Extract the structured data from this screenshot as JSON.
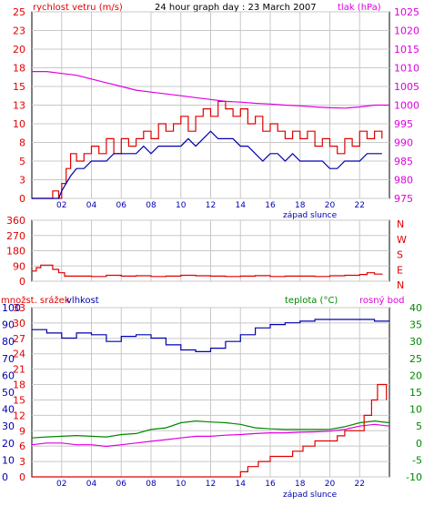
{
  "colors": {
    "red": "#e00000",
    "blue": "#0000b0",
    "magenta": "#e000e0",
    "green": "#008800",
    "grid": "#c8c8c8",
    "frame": "#000000"
  },
  "header": {
    "wind_label": "rychlost vetru (m/s)",
    "title": "24 hour graph day : 23 March 2007",
    "pressure_label": "tlak (hPa)"
  },
  "footer": {
    "sunset_top": "západ slunce",
    "sunset_bottom": "západ slunce"
  },
  "panel3_labels": {
    "precip": "množst. srážek",
    "humidity": "vlhkost",
    "temperature": "teplota (°C)",
    "dewpoint": "rosný bod"
  },
  "chart_data": [
    {
      "type": "line",
      "name": "wind-pressure",
      "x_ticks": [
        "02",
        "04",
        "06",
        "08",
        "10",
        "12",
        "14",
        "16",
        "18",
        "20",
        "22"
      ],
      "y_left_ticks": [
        "0",
        "3",
        "5",
        "8",
        "10",
        "13",
        "15",
        "18",
        "20",
        "23",
        "25"
      ],
      "y_left_range": [
        0,
        25
      ],
      "y_right_ticks": [
        "975",
        "980",
        "985",
        "990",
        "995",
        "1000",
        "1005",
        "1010",
        "1015",
        "1020",
        "1025"
      ],
      "y_right_range": [
        975,
        1025
      ],
      "x_range": [
        0,
        24
      ],
      "series": [
        {
          "name": "rychlost vetru (m/s)",
          "color_key": "red",
          "axis": "left",
          "x": [
            0,
            1.2,
            1.4,
            1.8,
            2.0,
            2.3,
            2.6,
            3.0,
            3.5,
            4.0,
            4.5,
            5.0,
            5.5,
            6.0,
            6.5,
            7.0,
            7.5,
            8.0,
            8.5,
            9.0,
            9.5,
            10.0,
            10.5,
            11.0,
            11.5,
            12.0,
            12.5,
            13.0,
            13.5,
            14.0,
            14.5,
            15.0,
            15.5,
            16.0,
            16.5,
            17.0,
            17.5,
            18.0,
            18.5,
            19.0,
            19.5,
            20.0,
            20.5,
            21.0,
            21.5,
            22.0,
            22.5,
            23.0,
            23.5
          ],
          "y": [
            0,
            0,
            1,
            0,
            2,
            4,
            6,
            5,
            6,
            7,
            6,
            8,
            6,
            8,
            7,
            8,
            9,
            8,
            10,
            9,
            10,
            11,
            9,
            11,
            12,
            11,
            13,
            12,
            11,
            12,
            10,
            11,
            9,
            10,
            9,
            8,
            9,
            8,
            9,
            7,
            8,
            7,
            6,
            8,
            7,
            9,
            8,
            9,
            8
          ]
        },
        {
          "name": "gust-blue",
          "color_key": "blue",
          "axis": "left",
          "x": [
            0,
            1.8,
            2.0,
            2.3,
            2.6,
            3.0,
            3.5,
            4.0,
            4.5,
            5.0,
            5.5,
            6.0,
            6.5,
            7.0,
            7.5,
            8.0,
            8.5,
            9.0,
            9.5,
            10.0,
            10.5,
            11.0,
            11.5,
            12.0,
            12.5,
            13.0,
            13.5,
            14.0,
            14.5,
            15.0,
            15.5,
            16.0,
            16.5,
            17.0,
            17.5,
            18.0,
            18.5,
            19.0,
            19.5,
            20.0,
            20.5,
            21.0,
            21.5,
            22.0,
            22.5,
            23.0,
            23.5
          ],
          "y": [
            0,
            0,
            1,
            2,
            3,
            4,
            4,
            5,
            5,
            5,
            6,
            6,
            6,
            6,
            7,
            6,
            7,
            7,
            7,
            7,
            8,
            7,
            8,
            9,
            8,
            8,
            8,
            7,
            7,
            6,
            5,
            6,
            6,
            5,
            6,
            5,
            5,
            5,
            5,
            4,
            4,
            5,
            5,
            5,
            6,
            6,
            6
          ]
        },
        {
          "name": "tlak (hPa)",
          "color_key": "magenta",
          "axis": "right",
          "x": [
            0,
            1,
            2,
            3,
            4,
            5,
            6,
            7,
            8,
            9,
            10,
            11,
            12,
            13,
            14,
            15,
            16,
            17,
            18,
            19,
            20,
            21,
            22,
            23,
            24
          ],
          "y": [
            1009,
            1009,
            1008.5,
            1008,
            1007,
            1006,
            1005,
            1004,
            1003.5,
            1003,
            1002.5,
            1002,
            1001.5,
            1001,
            1000.8,
            1000.5,
            1000.3,
            1000,
            999.8,
            999.5,
            999.3,
            999.2,
            999.5,
            1000,
            1000
          ]
        }
      ]
    },
    {
      "type": "line",
      "name": "wind-direction",
      "y_left_ticks": [
        "0",
        "90",
        "180",
        "270",
        "360"
      ],
      "y_left_range": [
        0,
        360
      ],
      "y_right_labels": [
        "N",
        "W",
        "S",
        "E",
        "N"
      ],
      "series": [
        {
          "name": "wind direction",
          "color_key": "red",
          "x": [
            0,
            0.3,
            0.6,
            1.2,
            1.4,
            1.8,
            2.2,
            3,
            4,
            5,
            6,
            7,
            8,
            9,
            10,
            11,
            12,
            13,
            14,
            15,
            16,
            17,
            18,
            19,
            20,
            21,
            22,
            22.5,
            23,
            23.5
          ],
          "y": [
            60,
            80,
            95,
            95,
            70,
            50,
            30,
            30,
            28,
            35,
            30,
            32,
            28,
            30,
            35,
            32,
            30,
            28,
            30,
            33,
            28,
            30,
            30,
            28,
            32,
            35,
            40,
            50,
            42,
            38
          ]
        }
      ]
    },
    {
      "type": "line",
      "name": "humidity-temp",
      "y_left_ticks": [
        "0",
        "3",
        "6",
        "9",
        "12",
        "15",
        "18",
        "21",
        "24",
        "27",
        "30",
        "33"
      ],
      "y_left_range": [
        0,
        33
      ],
      "y_left2_ticks": [
        "0",
        "10",
        "20",
        "30",
        "40",
        "50",
        "60",
        "70",
        "80",
        "90",
        "100"
      ],
      "y_left2_range": [
        0,
        100
      ],
      "y_right_ticks": [
        "-10",
        "-5",
        "0",
        "5",
        "10",
        "15",
        "20",
        "25",
        "30",
        "35",
        "40"
      ],
      "y_right_range": [
        -10,
        40
      ],
      "series": [
        {
          "name": "vlhkost",
          "color_key": "blue",
          "axis": "left2",
          "x": [
            0,
            1,
            2,
            3,
            4,
            5,
            6,
            7,
            8,
            9,
            10,
            11,
            12,
            13,
            14,
            15,
            16,
            17,
            18,
            19,
            20,
            21,
            22,
            23,
            24
          ],
          "y": [
            87,
            85,
            82,
            85,
            84,
            80,
            83,
            84,
            82,
            78,
            75,
            74,
            76,
            80,
            84,
            88,
            90,
            91,
            92,
            93,
            93,
            93,
            93,
            92,
            92
          ]
        },
        {
          "name": "teplota (°C)",
          "color_key": "green",
          "axis": "right",
          "x": [
            0,
            1,
            2,
            3,
            4,
            5,
            6,
            7,
            8,
            9,
            10,
            11,
            12,
            13,
            14,
            15,
            16,
            17,
            18,
            19,
            20,
            21,
            22,
            23,
            24
          ],
          "y": [
            1.5,
            1.8,
            2,
            2.2,
            2,
            1.8,
            2.5,
            2.8,
            4,
            4.5,
            6,
            6.5,
            6.2,
            6,
            5.5,
            4.5,
            4.2,
            4,
            4,
            4,
            4,
            4.8,
            6,
            6.5,
            6
          ]
        },
        {
          "name": "rosný bod",
          "color_key": "magenta",
          "axis": "right",
          "x": [
            0,
            1,
            2,
            3,
            4,
            5,
            6,
            7,
            8,
            9,
            10,
            11,
            12,
            13,
            14,
            15,
            16,
            17,
            18,
            19,
            20,
            21,
            22,
            23,
            24
          ],
          "y": [
            -0.5,
            0,
            0,
            -0.5,
            -0.5,
            -1,
            -0.5,
            0,
            0.5,
            1,
            1.5,
            2,
            2,
            2.3,
            2.5,
            2.8,
            3,
            3,
            3.2,
            3.3,
            3.5,
            4,
            5,
            5.5,
            5
          ]
        },
        {
          "name": "množst. srážek",
          "color_key": "red",
          "axis": "left",
          "x": [
            0,
            9,
            9.9,
            10.8,
            11.6,
            12.5,
            13.5,
            14.0,
            14.5,
            15.2,
            16.0,
            16.8,
            17.5,
            18.2,
            19.0,
            19.8,
            20.5,
            21.0,
            21.8,
            22.3,
            22.8,
            23.2,
            23.8
          ],
          "y": [
            0,
            0,
            0,
            0,
            0,
            0,
            0,
            1,
            2,
            3,
            4,
            4,
            5,
            6,
            7,
            7,
            8,
            9,
            9,
            12,
            15,
            18,
            15
          ]
        }
      ]
    }
  ]
}
